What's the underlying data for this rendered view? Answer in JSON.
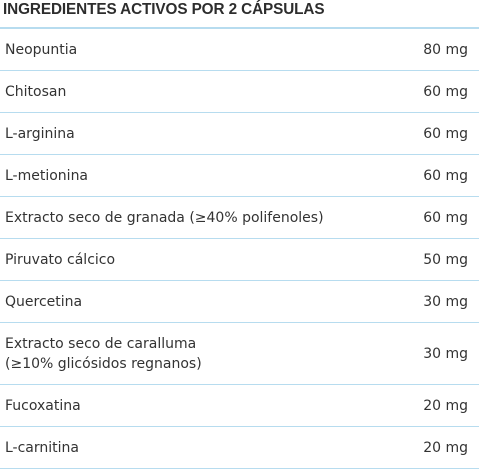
{
  "header": {
    "title": "INGREDIENTES ACTIVOS POR 2 CÁPSULAS"
  },
  "ingredients": [
    {
      "name": "Neopuntia",
      "amount": "80 mg"
    },
    {
      "name": "Chitosan",
      "amount": "60 mg"
    },
    {
      "name": "L-arginina",
      "amount": "60 mg"
    },
    {
      "name": "L-metionina",
      "amount": "60 mg"
    },
    {
      "name": "Extracto seco de granada (≥40% polifenoles)",
      "amount": "60 mg"
    },
    {
      "name": "Piruvato cálcico",
      "amount": "50 mg"
    },
    {
      "name": "Quercetina",
      "amount": "30 mg"
    },
    {
      "name": "Extracto seco de caralluma\n(≥10% glicósidos regnanos)",
      "amount": "30 mg"
    },
    {
      "name": "Fucoxatina",
      "amount": "20 mg"
    },
    {
      "name": "L-carnitina",
      "amount": "20 mg"
    }
  ],
  "colors": {
    "divider": "#b7dcef",
    "text": "#333333"
  }
}
